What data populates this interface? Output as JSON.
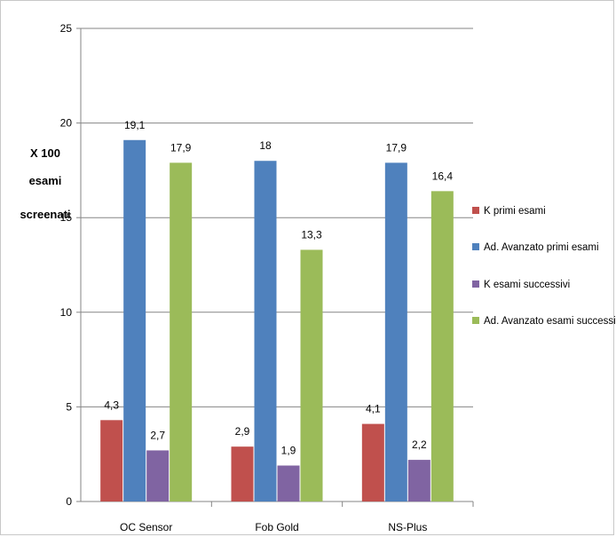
{
  "chart_data": {
    "type": "bar",
    "title": "",
    "xlabel": "",
    "ylabel_lines": [
      "X 100",
      "esami",
      "screenati"
    ],
    "categories": [
      "OC Sensor",
      "Fob Gold",
      "NS-Plus"
    ],
    "series": [
      {
        "name": "K primi esami",
        "color": "#c0504d",
        "values": [
          4.3,
          2.9,
          4.1
        ],
        "labels": [
          "4,3",
          "2,9",
          "4,1"
        ]
      },
      {
        "name": "Ad. Avanzato primi esami",
        "color": "#4f81bd",
        "values": [
          19.1,
          18,
          17.9
        ],
        "labels": [
          "19,1",
          "18",
          "17,9"
        ]
      },
      {
        "name": "K esami successivi",
        "color": "#8064a2",
        "values": [
          2.7,
          1.9,
          2.2
        ],
        "labels": [
          "2,7",
          "1,9",
          "2,2"
        ]
      },
      {
        "name": "Ad. Avanzato esami successivi",
        "color": "#9bbb59",
        "values": [
          17.9,
          13.3,
          16.4
        ],
        "labels": [
          "17,9",
          "13,3",
          "16,4"
        ]
      }
    ],
    "ylim": [
      0,
      25
    ],
    "yticks": [
      "0",
      "5",
      "10",
      "15",
      "20",
      "25"
    ],
    "grid": true,
    "legend_position": "right"
  }
}
